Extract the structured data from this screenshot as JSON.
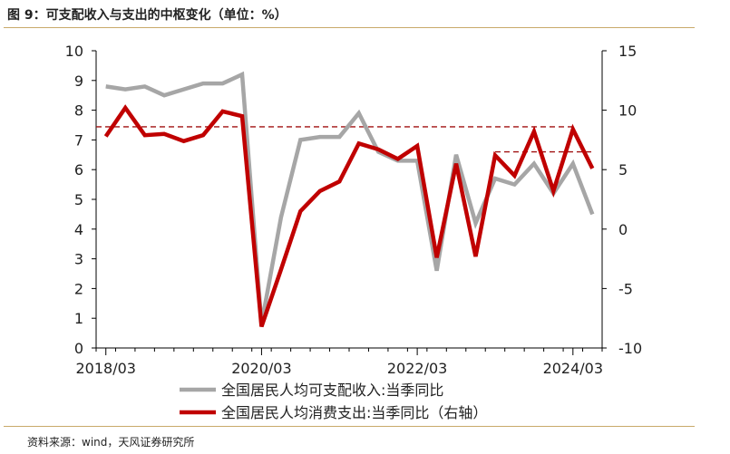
{
  "title": "图 9：可支配收入与支出的中枢变化（单位：%）",
  "source": "资料来源：wind，天风证券研究所",
  "colors": {
    "series1": "#a6a6a6",
    "series2": "#c00000",
    "ref": "#a01010",
    "rule": "#c9a96a"
  },
  "chart_data": {
    "type": "line",
    "x": [
      "2018/03",
      "2018/06",
      "2018/09",
      "2018/12",
      "2019/03",
      "2019/06",
      "2019/09",
      "2019/12",
      "2020/03",
      "2020/06",
      "2020/09",
      "2020/12",
      "2021/03",
      "2021/06",
      "2021/09",
      "2021/12",
      "2022/03",
      "2022/06",
      "2022/09",
      "2022/12",
      "2023/03",
      "2023/06",
      "2023/09",
      "2023/12",
      "2024/03",
      "2024/06"
    ],
    "x_tick_labels": [
      "2018/03",
      "2020/03",
      "2022/03",
      "2024/03"
    ],
    "x_tick_indices": [
      0,
      8,
      16,
      24
    ],
    "y_left": {
      "ylim": [
        0,
        10
      ],
      "ticks": [
        "0",
        "1",
        "2",
        "3",
        "4",
        "5",
        "6",
        "7",
        "8",
        "9",
        "10"
      ]
    },
    "y_right": {
      "ylim": [
        -10,
        15
      ],
      "ticks": [
        "-10",
        "-5",
        "0",
        "5",
        "10",
        "15"
      ]
    },
    "series": [
      {
        "name": "全国居民人均可支配收入:当季同比",
        "axis": "left",
        "values": [
          8.8,
          8.7,
          8.8,
          8.5,
          8.7,
          8.9,
          8.9,
          9.2,
          0.8,
          4.4,
          7.0,
          7.1,
          7.1,
          7.9,
          6.6,
          6.3,
          6.3,
          2.6,
          6.5,
          4.2,
          5.7,
          5.5,
          6.2,
          5.2,
          6.2,
          4.5
        ]
      },
      {
        "name": "全国居民人均消费支出:当季同比（右轴）",
        "axis": "right",
        "values": [
          7.8,
          10.2,
          7.9,
          8.0,
          7.4,
          7.9,
          9.9,
          9.5,
          -8.2,
          -3.4,
          1.5,
          3.2,
          4.0,
          7.2,
          6.7,
          5.9,
          7.0,
          -2.4,
          5.5,
          -2.3,
          6.2,
          4.5,
          8.2,
          3.2,
          8.4,
          5.1
        ]
      }
    ],
    "reference_lines": [
      {
        "axis": "right",
        "value": 8.6,
        "from": "2018/03",
        "to": "2024/03"
      },
      {
        "axis": "right",
        "value": 6.5,
        "from": "2023/03",
        "to": "2024/06"
      }
    ],
    "legend": [
      {
        "label": "全国居民人均可支配收入:当季同比"
      },
      {
        "label": "全国居民人均消费支出:当季同比（右轴）"
      }
    ],
    "legend_position": "bottom"
  }
}
